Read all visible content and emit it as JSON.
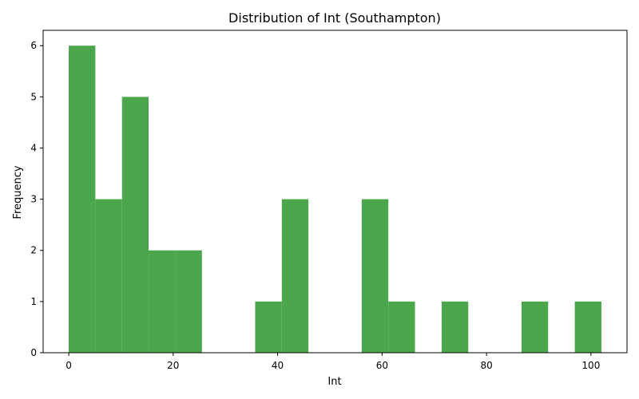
{
  "chart_data": {
    "type": "bar",
    "title": "Distribution of Int (Southampton)",
    "xlabel": "Int",
    "ylabel": "Frequency",
    "xlim": [
      -4.9,
      106.9
    ],
    "ylim": [
      0,
      6.3
    ],
    "x_ticks": [
      0,
      20,
      40,
      60,
      80,
      100
    ],
    "y_ticks": [
      0,
      1,
      2,
      3,
      4,
      5,
      6
    ],
    "bin_edges": [
      0,
      5.1,
      10.2,
      15.3,
      20.4,
      25.5,
      30.6,
      35.7,
      40.8,
      45.9,
      51.0,
      56.1,
      61.2,
      66.3,
      71.4,
      76.5,
      81.6,
      86.7,
      91.8,
      96.9,
      102.0
    ],
    "values": [
      6,
      3,
      5,
      2,
      2,
      0,
      0,
      1,
      3,
      0,
      0,
      3,
      1,
      0,
      1,
      0,
      0,
      1,
      0,
      1
    ],
    "bar_color": "#4ca64c",
    "grid": false,
    "legend": false
  }
}
